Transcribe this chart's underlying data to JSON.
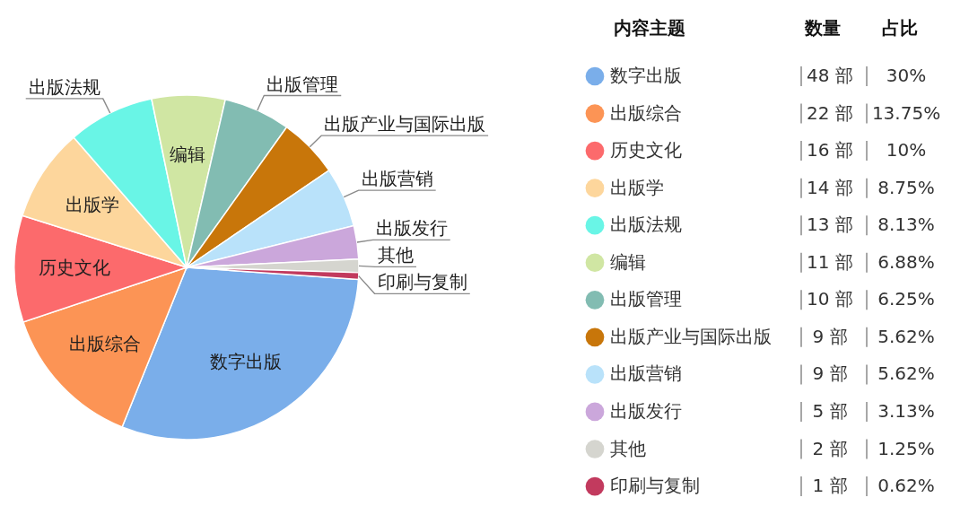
{
  "chart_data": {
    "type": "pie",
    "categories": [
      "数字出版",
      "出版综合",
      "历史文化",
      "出版学",
      "出版法规",
      "编辑",
      "出版管理",
      "出版产业与国际出版",
      "出版营销",
      "出版发行",
      "其他",
      "印刷与复制"
    ],
    "values": [
      48,
      22,
      16,
      14,
      13,
      11,
      10,
      9,
      9,
      5,
      2,
      1
    ],
    "colors": [
      "#7aaeea",
      "#fc9455",
      "#fc6a6c",
      "#fdd69c",
      "#69f5e6",
      "#d0e6a3",
      "#82bcb2",
      "#c8760a",
      "#b9e2fa",
      "#cba7db",
      "#d5d5cf",
      "#c23a5e"
    ],
    "legend": "right",
    "legend_title": "内容主题",
    "value_labels": [
      "48 部",
      "22 部",
      "16 部",
      "14 部",
      "13 部",
      "11 部",
      "10 部",
      "9 部",
      "9 部",
      "5 部",
      "2 部",
      "1 部"
    ],
    "annotations": [
      "数量",
      "占比",
      {
        "text": "30%",
        "x": "数字出版"
      },
      {
        "text": "13.75%",
        "x": "出版综合"
      },
      {
        "text": "10%",
        "x": "历史文化"
      },
      {
        "text": "8.75%",
        "x": "出版学"
      },
      {
        "text": "8.13%",
        "x": "出版法规"
      },
      {
        "text": "6.88%",
        "x": "编辑"
      },
      {
        "text": "6.25%",
        "x": "出版管理"
      },
      {
        "text": "5.62%",
        "x": "出版产业与国际出版"
      },
      {
        "text": "5.62%",
        "x": "出版营销"
      },
      {
        "text": "3.13%",
        "x": "出版发行"
      },
      {
        "text": "1.25%",
        "x": "其他"
      },
      {
        "text": "0.62%",
        "x": "印刷与复制"
      }
    ]
  }
}
